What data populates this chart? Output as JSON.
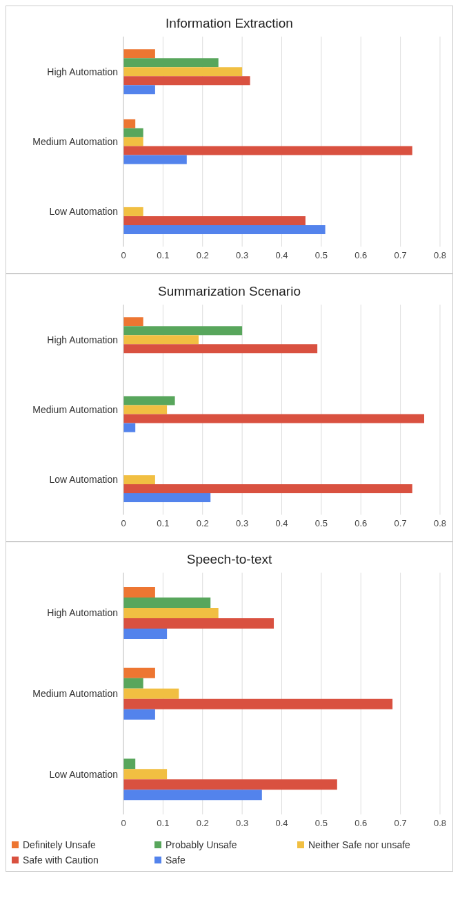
{
  "chart_data": [
    {
      "type": "bar",
      "orientation": "horizontal",
      "title": "Information Extraction",
      "categories": [
        "High Automation",
        "Medium Automation",
        "Low Automation"
      ],
      "xlim": [
        0,
        0.8
      ],
      "xticks": [
        0,
        0.1,
        0.2,
        0.3,
        0.4,
        0.5,
        0.6,
        0.7,
        0.8
      ],
      "grid": "x",
      "legend": false,
      "series": [
        {
          "color": "#ed7632",
          "values": [
            0.08,
            0.03,
            0
          ]
        },
        {
          "color": "#58a65c",
          "values": [
            0.24,
            0.05,
            0
          ]
        },
        {
          "color": "#f1bf42",
          "values": [
            0.3,
            0.05,
            0.05
          ]
        },
        {
          "color": "#d95140",
          "values": [
            0.32,
            0.73,
            0.46
          ]
        },
        {
          "color": "#5383ec",
          "values": [
            0.08,
            0.16,
            0.51
          ]
        }
      ]
    },
    {
      "type": "bar",
      "orientation": "horizontal",
      "title": "Summarization Scenario",
      "categories": [
        "High Automation",
        "Medium Automation",
        "Low Automation"
      ],
      "xlim": [
        0,
        0.8
      ],
      "xticks": [
        0,
        0.1,
        0.2,
        0.3,
        0.4,
        0.5,
        0.6,
        0.7,
        0.8
      ],
      "grid": "x",
      "legend": false,
      "series": [
        {
          "color": "#ed7632",
          "values": [
            0.05,
            0,
            0
          ]
        },
        {
          "color": "#58a65c",
          "values": [
            0.3,
            0.13,
            0
          ]
        },
        {
          "color": "#f1bf42",
          "values": [
            0.19,
            0.11,
            0.08
          ]
        },
        {
          "color": "#d95140",
          "values": [
            0.49,
            0.76,
            0.73
          ]
        },
        {
          "color": "#5383ec",
          "values": [
            0,
            0.03,
            0.22
          ]
        }
      ]
    },
    {
      "type": "bar",
      "orientation": "horizontal",
      "title": "Speech-to-text",
      "categories": [
        "High Automation",
        "Medium Automation",
        "Low Automation"
      ],
      "xlim": [
        0,
        0.8
      ],
      "xticks": [
        0,
        0.1,
        0.2,
        0.3,
        0.4,
        0.5,
        0.6,
        0.7,
        0.8
      ],
      "grid": "x",
      "legend": "bottom",
      "series": [
        {
          "name": "Definitely Unsafe",
          "color": "#ed7632",
          "values": [
            0.08,
            0.08,
            0
          ]
        },
        {
          "name": "Probably Unsafe",
          "color": "#58a65c",
          "values": [
            0.22,
            0.05,
            0.03
          ]
        },
        {
          "name": "Neither Safe nor unsafe",
          "color": "#f1bf42",
          "values": [
            0.24,
            0.14,
            0.11
          ]
        },
        {
          "name": "Safe with Caution",
          "color": "#d95140",
          "values": [
            0.38,
            0.68,
            0.54
          ]
        },
        {
          "name": "Safe",
          "color": "#5383ec",
          "values": [
            0.11,
            0.08,
            0.35
          ]
        }
      ]
    }
  ]
}
